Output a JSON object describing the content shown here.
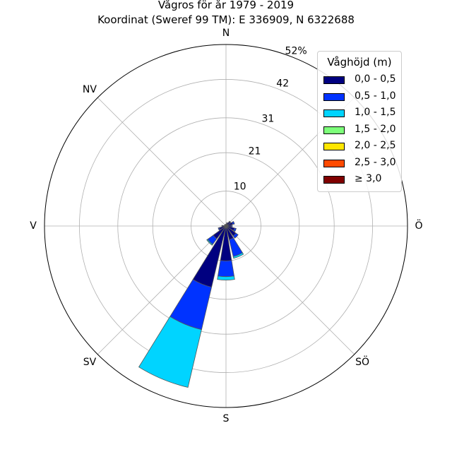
{
  "title": "Vågros för år 1979 - 2019",
  "subtitle": "Koordinat (Sweref 99 TM): E 336909, N 6322688",
  "chart_data": {
    "type": "polar-stacked-bar",
    "directions": [
      "N",
      "NNÖ",
      "NÖ",
      "ÖNÖ",
      "Ö",
      "ÖSÖ",
      "SÖ",
      "SSÖ",
      "S",
      "SSV",
      "SV",
      "VSV",
      "V",
      "VNV",
      "NV",
      "NNV"
    ],
    "direction_labels": [
      "N",
      "NV",
      "V",
      "SV",
      "S",
      "SÖ",
      "Ö"
    ],
    "radial_ticks": [
      "10",
      "21",
      "31",
      "42",
      "52%"
    ],
    "radial_tick_values": [
      10,
      21,
      31,
      42,
      52
    ],
    "r_max": 52,
    "legend_title": "Våghöjd (m)",
    "series": [
      {
        "name": "0,0 - 0,5",
        "color": "#000080",
        "values": [
          0.5,
          1.0,
          1.5,
          2.0,
          1.5,
          2.5,
          3.5,
          4.0,
          10.0,
          18.0,
          4.5,
          2.0,
          1.0,
          0.5,
          0.5,
          0.5
        ]
      },
      {
        "name": "0,5 - 1,0",
        "color": "#0033ff",
        "values": [
          0,
          0,
          0.2,
          0.5,
          0.3,
          0.5,
          0.8,
          5.0,
          4.5,
          12.5,
          2.0,
          0.3,
          0.2,
          0,
          0,
          0
        ]
      },
      {
        "name": "1,0 - 1,5",
        "color": "#00d4ff",
        "values": [
          0,
          0,
          0,
          0,
          0,
          0,
          0,
          0.5,
          1.0,
          17.0,
          0.3,
          0,
          0,
          0,
          0,
          0
        ]
      },
      {
        "name": "1,5 - 2,0",
        "color": "#7dff7a",
        "values": [
          0,
          0,
          0,
          0,
          0,
          0,
          0,
          0,
          0,
          0,
          0,
          0,
          0,
          0,
          0,
          0
        ]
      },
      {
        "name": "2,0 - 2,5",
        "color": "#ffe600",
        "values": [
          0,
          0,
          0,
          0,
          0,
          0,
          0,
          0,
          0,
          0,
          0,
          0,
          0,
          0,
          0,
          0
        ]
      },
      {
        "name": "2,5 - 3,0",
        "color": "#ff4a00",
        "values": [
          0,
          0,
          0,
          0,
          0,
          0,
          0,
          0,
          0,
          0,
          0,
          0,
          0,
          0,
          0,
          0
        ]
      },
      {
        "name": "≥ 3,0",
        "color": "#800000",
        "values": [
          0,
          0,
          0,
          0,
          0,
          0,
          0,
          0,
          0,
          0,
          0,
          0,
          0,
          0,
          0,
          0
        ]
      }
    ]
  }
}
